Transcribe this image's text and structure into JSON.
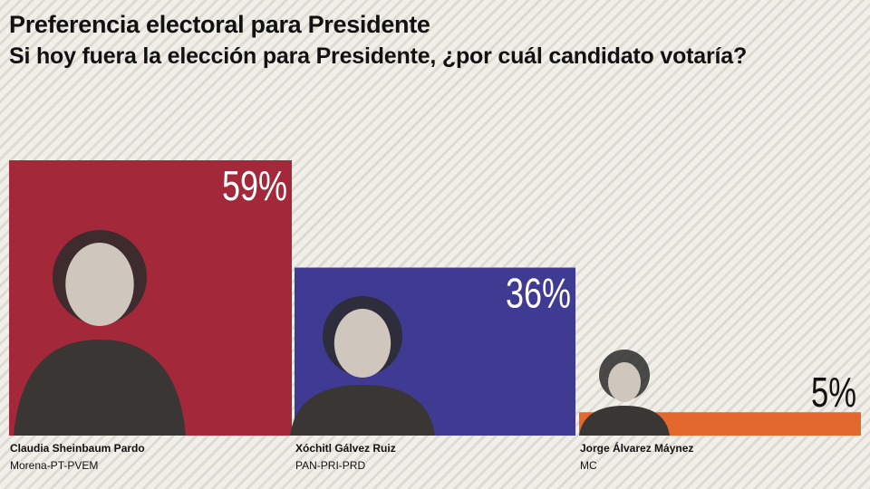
{
  "chart_data": {
    "type": "bar",
    "title": "Preferencia electoral para Presidente",
    "subtitle": "Si hoy fuera la elección para Presidente, ¿por cuál candidato votaría?",
    "categories": [
      "Claudia Sheinbaum Pardo",
      "Xóchitl Gálvez Ruiz",
      "Jorge Álvarez Máynez"
    ],
    "parties": [
      "Morena-PT-PVEM",
      "PAN-PRI-PRD",
      "MC"
    ],
    "values": [
      59,
      36,
      5
    ],
    "value_labels": [
      "59%",
      "36%",
      "5%"
    ],
    "colors": [
      "#a3283a",
      "#3f3a92",
      "#e3682d"
    ],
    "unit": "%",
    "ylim": [
      0,
      59
    ],
    "grid": false,
    "legend": "none"
  }
}
